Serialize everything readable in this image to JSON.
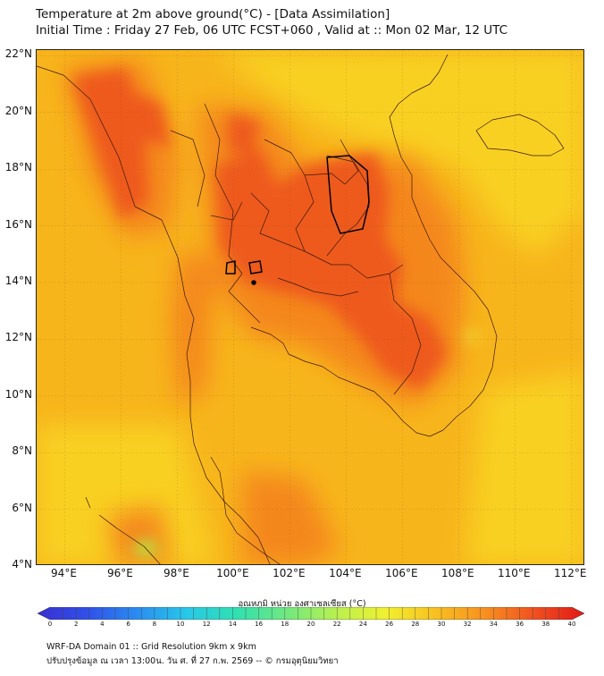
{
  "title_line1": "Temperature at 2m above ground(°C) - [Data Assimilation]",
  "title_line2": "Initial Time : Friday 27 Feb, 06 UTC FCST+060 , Valid at :: Mon 02 Mar, 12 UTC",
  "map": {
    "lon_range": [
      93,
      112.5
    ],
    "lat_range": [
      4,
      22.2
    ],
    "lat_ticks": [
      "22°N",
      "20°N",
      "18°N",
      "16°N",
      "14°N",
      "12°N",
      "10°N",
      "8°N",
      "6°N",
      "4°N"
    ],
    "lon_ticks": [
      "94°E",
      "96°E",
      "98°E",
      "100°E",
      "102°E",
      "104°E",
      "106°E",
      "108°E",
      "110°E",
      "112°E"
    ],
    "background_color": "#f7b51c",
    "hot_color": "#ee5a1e",
    "warm_color": "#f4871b",
    "cool_color": "#f8d020"
  },
  "colorbar": {
    "title": "อุณหภูมิ หน่วย องศาเซลเซียส (°C)",
    "min": 0,
    "max": 40,
    "tick_labels": [
      "0",
      "2",
      "4",
      "6",
      "8",
      "10",
      "12",
      "14",
      "16",
      "18",
      "20",
      "22",
      "24",
      "26",
      "28",
      "30",
      "32",
      "34",
      "36",
      "38",
      "40"
    ],
    "stops": [
      "#3a2fd0",
      "#3050e8",
      "#2a8cf0",
      "#28c8e8",
      "#30e0b0",
      "#70e880",
      "#b8f050",
      "#f0f030",
      "#f8c020",
      "#f89020",
      "#f05020",
      "#e01818"
    ]
  },
  "footer_line1": "WRF-DA Domain 01 :: Grid Resolution 9km x 9km",
  "footer_line2": "ปรับปรุงข้อมูล ณ เวลา 13:00น. วัน ศ. ที่ 27 ก.พ. 2569 -- © กรมอุตุนิยมวิทยา"
}
